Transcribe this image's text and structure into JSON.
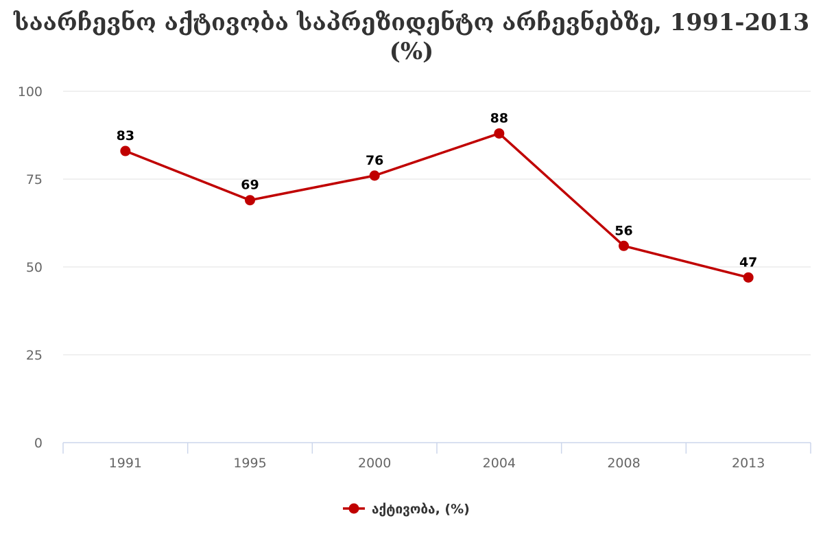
{
  "chart_data": {
    "type": "line",
    "title": "საარჩევნო აქტივობა საპრეზიდენტო არჩევნებზე, 1991-2013 (%)",
    "categories": [
      "1991",
      "1995",
      "2000",
      "2004",
      "2008",
      "2013"
    ],
    "series": [
      {
        "name": "აქტივობა, (%)",
        "values": [
          83,
          69,
          76,
          88,
          56,
          47
        ],
        "color": "#c00000"
      }
    ],
    "xlabel": "",
    "ylabel": "",
    "ylim": [
      0,
      100
    ],
    "yticks": [
      0,
      25,
      50,
      75,
      100
    ],
    "data_labels": true,
    "grid": true,
    "legend_position": "bottom-center"
  }
}
